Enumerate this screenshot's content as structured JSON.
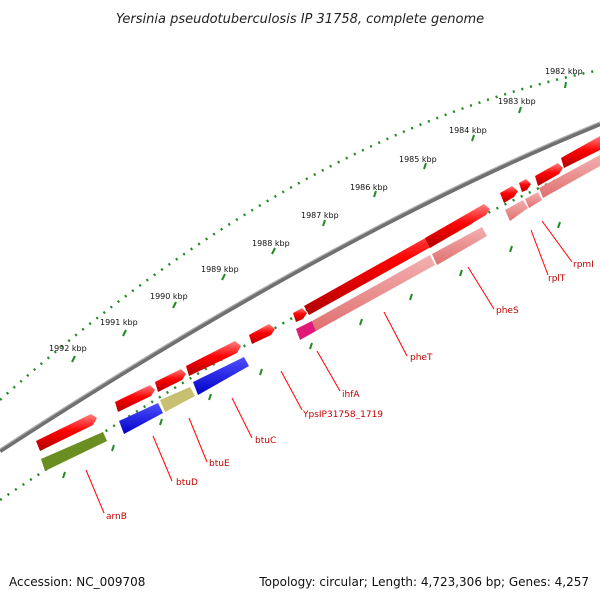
{
  "title": "Yersinia pseudotuberculosis IP 31758, complete genome",
  "accession": "Accession: NC_009708",
  "topology": "Topology: circular; Length: 4,723,306 bp; Genes: 4,257",
  "tick_labels": [
    "1982 kbp",
    "1983 kbp",
    "1984 kbp",
    "1985 kbp",
    "1986 kbp",
    "1987 kbp",
    "1988 kbp",
    "1989 kbp",
    "1990 kbp",
    "1991 kbp",
    "1992 kbp"
  ],
  "gene_labels": [
    "rpmI",
    "rplT",
    "pheS",
    "pheT",
    "ihfA",
    "YpsIP31758_1719",
    "btuC",
    "btuE",
    "btuD",
    "arnB"
  ],
  "colors": {
    "backbone": "#808080",
    "gene_arrow": "#ff0000",
    "pheS_pheT_feature": "#f08080",
    "ihfA_feature": "#e0187a",
    "btu_feature": "#0000ff",
    "btuE_feature": "#c8c070",
    "arnB_feature": "#6b8e23",
    "tick_marks": "#228b22",
    "gene_label_text": "#c00000"
  }
}
